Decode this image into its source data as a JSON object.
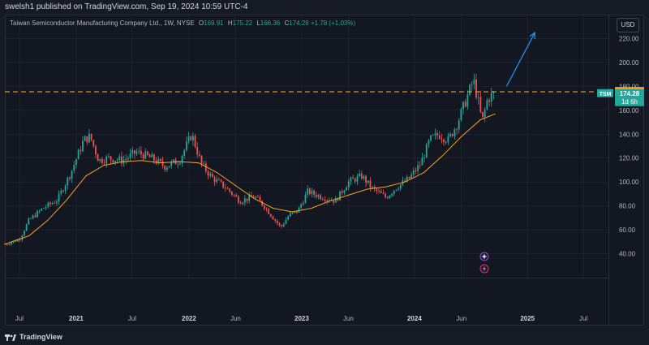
{
  "publisher": {
    "text": "swelsh1 published on TradingView.com, Sep 19, 2024 10:59 UTC-4"
  },
  "legend": {
    "title": "Taiwan Semiconductor Manufacturing Company Ltd., 1W, NYSE",
    "open_label": "O",
    "open": "169.91",
    "high_label": "H",
    "high": "175.22",
    "low_label": "L",
    "low": "166.36",
    "close_label": "C",
    "close": "174.28",
    "change": "+1.78 (+1.03%)"
  },
  "currency": "USD",
  "footer": {
    "brand": "TradingView"
  },
  "colors": {
    "up": "#26a69a",
    "down": "#ef5350",
    "ma": "#f7a21b",
    "level": "#f7a21b",
    "arrow": "#2196f3",
    "grid": "#2a2e39",
    "bg": "#131722"
  },
  "badges": {
    "level_value": "175.45",
    "symbol": "TSM",
    "last_price": "174.28",
    "countdown": "1d 6h"
  },
  "icons": [
    "sparkle-icon",
    "lightning-icon"
  ],
  "chart_data": {
    "type": "candlestick",
    "timeframe": "1W",
    "y_axis": {
      "ticks": [
        40,
        60,
        80,
        100,
        120,
        140,
        160,
        180,
        200,
        220
      ],
      "tick_labels": [
        "40.00",
        "60.00",
        "80.00",
        "100.00",
        "120.00",
        "140.00",
        "160.00",
        "180.00",
        "200.00",
        "220.00"
      ],
      "range": [
        20,
        240
      ]
    },
    "x_axis": {
      "range": [
        "2020-05-15",
        "2025-09-20"
      ],
      "ticks": [
        {
          "date": "2020-07-01",
          "label": "Jul",
          "year": false
        },
        {
          "date": "2021-01-01",
          "label": "2021",
          "year": true
        },
        {
          "date": "2021-07-01",
          "label": "Jul",
          "year": false
        },
        {
          "date": "2022-01-01",
          "label": "2022",
          "year": true
        },
        {
          "date": "2022-06-01",
          "label": "Jun",
          "year": false
        },
        {
          "date": "2023-01-01",
          "label": "2023",
          "year": true
        },
        {
          "date": "2023-06-01",
          "label": "Jun",
          "year": false
        },
        {
          "date": "2024-01-01",
          "label": "2024",
          "year": true
        },
        {
          "date": "2024-06-01",
          "label": "Jun",
          "year": false
        },
        {
          "date": "2025-01-01",
          "label": "2025",
          "year": true
        },
        {
          "date": "2025-07-01",
          "label": "Jul",
          "year": false
        }
      ]
    },
    "price_path": [
      [
        "2020-05-15",
        48
      ],
      [
        "2020-07-01",
        52
      ],
      [
        "2020-08-01",
        68
      ],
      [
        "2020-09-15",
        78
      ],
      [
        "2020-11-01",
        85
      ],
      [
        "2020-12-15",
        108
      ],
      [
        "2021-01-25",
        135
      ],
      [
        "2021-02-15",
        138
      ],
      [
        "2021-03-15",
        118
      ],
      [
        "2021-04-15",
        120
      ],
      [
        "2021-06-01",
        118
      ],
      [
        "2021-07-15",
        125
      ],
      [
        "2021-09-01",
        120
      ],
      [
        "2021-10-15",
        113
      ],
      [
        "2021-12-01",
        118
      ],
      [
        "2022-01-10",
        140
      ],
      [
        "2022-02-10",
        115
      ],
      [
        "2022-03-15",
        104
      ],
      [
        "2022-05-01",
        95
      ],
      [
        "2022-06-15",
        84
      ],
      [
        "2022-08-01",
        88
      ],
      [
        "2022-09-01",
        80
      ],
      [
        "2022-10-25",
        62
      ],
      [
        "2022-11-20",
        72
      ],
      [
        "2022-12-20",
        76
      ],
      [
        "2023-01-20",
        92
      ],
      [
        "2023-03-01",
        88
      ],
      [
        "2023-04-20",
        84
      ],
      [
        "2023-06-01",
        100
      ],
      [
        "2023-07-15",
        105
      ],
      [
        "2023-08-15",
        95
      ],
      [
        "2023-10-01",
        87
      ],
      [
        "2023-11-01",
        95
      ],
      [
        "2023-12-15",
        103
      ],
      [
        "2024-01-20",
        115
      ],
      [
        "2024-02-20",
        135
      ],
      [
        "2024-03-20",
        140
      ],
      [
        "2024-04-20",
        135
      ],
      [
        "2024-05-20",
        150
      ],
      [
        "2024-06-15",
        168
      ],
      [
        "2024-07-10",
        185
      ],
      [
        "2024-07-25",
        168
      ],
      [
        "2024-08-07",
        150
      ],
      [
        "2024-08-25",
        170
      ],
      [
        "2024-09-19",
        174.28
      ]
    ],
    "moving_average": [
      [
        "2020-05-15",
        48
      ],
      [
        "2020-08-01",
        55
      ],
      [
        "2020-10-01",
        68
      ],
      [
        "2020-12-01",
        85
      ],
      [
        "2021-02-01",
        105
      ],
      [
        "2021-04-01",
        114
      ],
      [
        "2021-06-01",
        117
      ],
      [
        "2021-08-01",
        118
      ],
      [
        "2021-10-01",
        116
      ],
      [
        "2021-12-01",
        117
      ],
      [
        "2022-02-01",
        116
      ],
      [
        "2022-04-01",
        108
      ],
      [
        "2022-06-01",
        97
      ],
      [
        "2022-08-01",
        86
      ],
      [
        "2022-10-01",
        78
      ],
      [
        "2022-12-01",
        75
      ],
      [
        "2023-02-01",
        78
      ],
      [
        "2023-04-01",
        84
      ],
      [
        "2023-06-01",
        89
      ],
      [
        "2023-08-01",
        94
      ],
      [
        "2023-10-01",
        96
      ],
      [
        "2023-12-01",
        100
      ],
      [
        "2024-02-01",
        108
      ],
      [
        "2024-04-01",
        122
      ],
      [
        "2024-06-01",
        138
      ],
      [
        "2024-08-01",
        152
      ],
      [
        "2024-09-19",
        157
      ]
    ],
    "horizontal_level": 175.45,
    "last_price": 174.28,
    "projection_arrow": {
      "from": [
        "2024-10-25",
        180
      ],
      "to": [
        "2025-01-25",
        225
      ]
    }
  }
}
